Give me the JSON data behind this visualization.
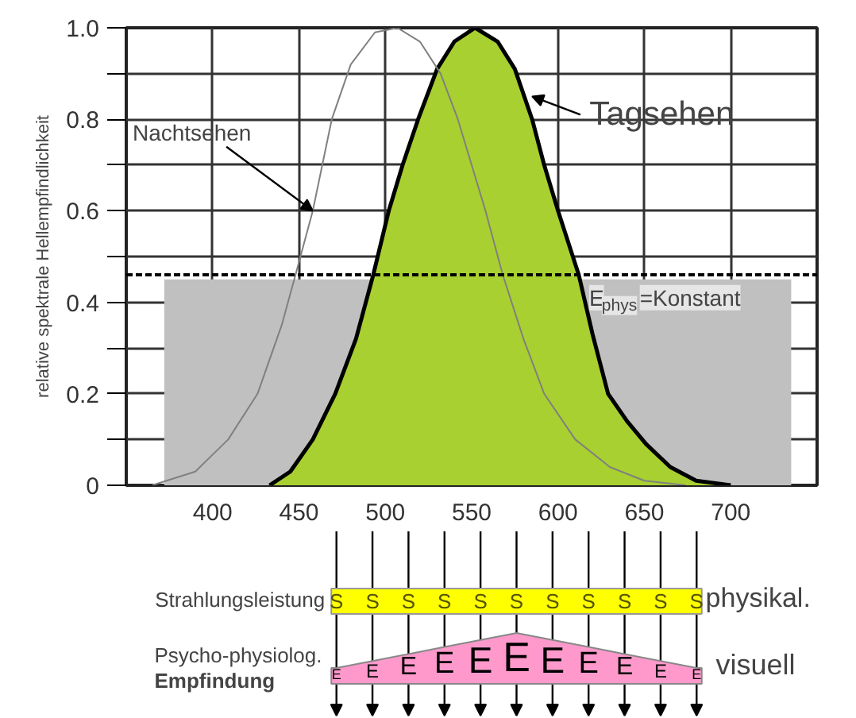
{
  "chart_data": {
    "type": "line",
    "ylabel": "relative spektrale Hellempfindlichkeit",
    "xlim": [
      350,
      750
    ],
    "ylim": [
      0,
      1
    ],
    "xticks": [
      400,
      450,
      500,
      550,
      600,
      650,
      700
    ],
    "yticks": [
      {
        "value": 0,
        "label": "0"
      },
      {
        "value": 0.1,
        "label": null
      },
      0.2,
      {
        "value": 0.3,
        "label": null
      },
      0.4,
      {
        "value": 0.5,
        "label": null
      },
      0.6,
      {
        "value": 0.7,
        "label": null
      },
      0.8,
      {
        "value": 0.9,
        "label": null
      },
      {
        "value": 1,
        "label": "1.0"
      }
    ],
    "grid": true,
    "series": [
      {
        "type": "area",
        "color": "#c0c0c0",
        "x": [
          372,
          735
        ],
        "values": [
          0.45,
          0.45
        ]
      },
      {
        "type": "area",
        "color": "#a8d030",
        "x": [
          433,
          445,
          458,
          471,
          483,
          493,
          502,
          510,
          519,
          530,
          540,
          552,
          565,
          575,
          585,
          592,
          600,
          612,
          620,
          629,
          640,
          651,
          665,
          680,
          700
        ],
        "values": [
          0,
          0.03,
          0.1,
          0.2,
          0.32,
          0.46,
          0.6,
          0.7,
          0.8,
          0.91,
          0.97,
          1.0,
          0.97,
          0.91,
          0.8,
          0.7,
          0.6,
          0.46,
          0.33,
          0.2,
          0.14,
          0.09,
          0.04,
          0.01,
          0
        ]
      },
      {
        "color": "#808080",
        "x": [
          365,
          390,
          409,
          426,
          440,
          448,
          458,
          469,
          480,
          494,
          507,
          520,
          532,
          542,
          558,
          568,
          580,
          592,
          610,
          630,
          650,
          674
        ],
        "values": [
          0,
          0.03,
          0.1,
          0.2,
          0.35,
          0.46,
          0.6,
          0.8,
          0.92,
          0.99,
          1.0,
          0.97,
          0.9,
          0.8,
          0.6,
          0.46,
          0.32,
          0.2,
          0.1,
          0.04,
          0.01,
          0
        ]
      }
    ],
    "ref_lines": [
      {
        "axis": "y",
        "value": 0.46,
        "label": "E$_{phys}$=Konstant",
        "line_style": "dashed",
        "color": "#000000"
      }
    ],
    "annotations": [
      {
        "text": "Nachtsehen",
        "x": 458,
        "y": 0.6
      },
      {
        "text": "Tagsehen",
        "x": 585,
        "y": 0.85
      },
      "Strahlungsleistung",
      "physikal.",
      "Psycho-physiolog.",
      "Empfindung",
      "visuell",
      "S",
      "S",
      "S",
      "S",
      "S",
      "S",
      "S",
      "S",
      "S",
      "S",
      "S",
      "E",
      "E",
      "E",
      "E",
      "E",
      "E",
      "E",
      "E",
      "E",
      "E",
      "E"
    ]
  }
}
